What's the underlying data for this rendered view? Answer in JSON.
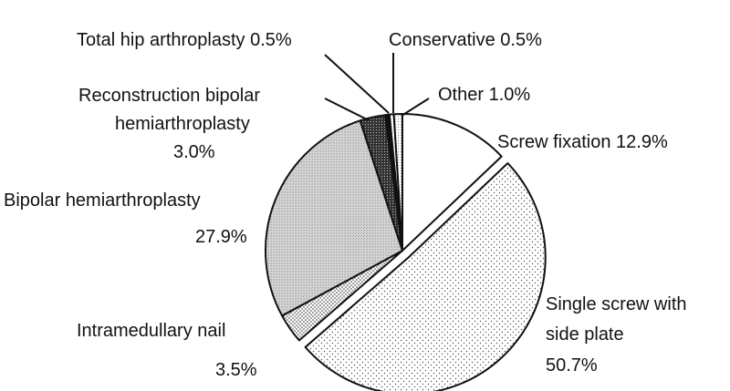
{
  "chart_data": {
    "type": "pie",
    "slices": [
      {
        "label": "Screw fixation",
        "value": 12.9,
        "display": "12.9%",
        "pattern": "white"
      },
      {
        "label": "Single screw with side plate",
        "value": 50.7,
        "display": "50.7%",
        "pattern": "sparse-dots"
      },
      {
        "label": "Intramedullary nail",
        "value": 3.5,
        "display": "3.5%",
        "pattern": "medium-dots"
      },
      {
        "label": "Bipolar hemiarthroplasty",
        "value": 27.9,
        "display": "27.9%",
        "pattern": "light-grey-texture"
      },
      {
        "label": "Reconstruction bipolar hemiarthroplasty",
        "value": 3.0,
        "display": "3.0%",
        "pattern": "dark-texture"
      },
      {
        "label": "Total hip arthroplasty",
        "value": 0.5,
        "display": "0.5%",
        "pattern": "black"
      },
      {
        "label": "Conservative",
        "value": 0.5,
        "display": "0.5%",
        "pattern": "white"
      },
      {
        "label": "Other",
        "value": 1.0,
        "display": "1.0%",
        "pattern": "light-dots"
      }
    ],
    "labels": {
      "screw_fixation": "Screw fixation 12.9%",
      "single_screw_line1": "Single screw with",
      "single_screw_line2": "side plate",
      "single_screw_pct": "50.7%",
      "im_nail": "Intramedullary nail",
      "im_nail_pct": "3.5%",
      "bipolar": "Bipolar hemiarthroplasty",
      "bipolar_pct": "27.9%",
      "recon_line1": "Reconstruction bipolar",
      "recon_line2": "hemiarthroplasty",
      "recon_pct": "3.0%",
      "total_hip": "Total hip arthroplasty 0.5%",
      "conservative": "Conservative 0.5%",
      "other": "Other 1.0%"
    },
    "start": "12 o'clock",
    "direction": "clockwise",
    "exploded_slice": "Single screw with side plate",
    "colors": {
      "stroke": "#111111",
      "background": "#ffffff",
      "text": "#111111"
    }
  }
}
